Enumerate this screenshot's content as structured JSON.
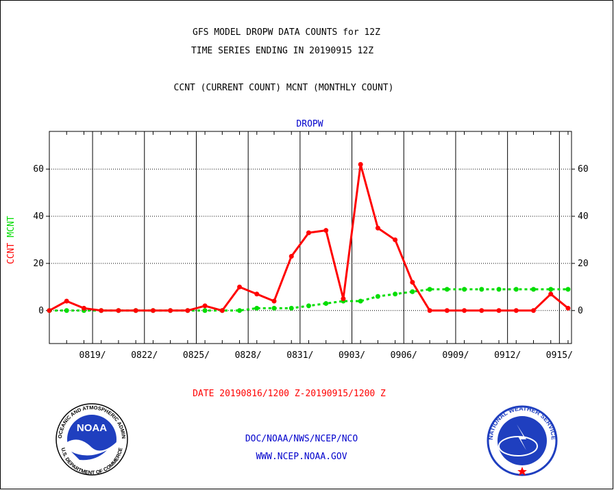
{
  "header": {
    "title_line1": "GFS MODEL DROPW DATA COUNTS for 12Z",
    "title_line2": "TIME SERIES ENDING IN 20190915 12Z",
    "subtitle": "CCNT (CURRENT COUNT) MCNT (MONTHLY COUNT)"
  },
  "footer": {
    "date_range": "DATE 20190816/1200 Z-20190915/1200 Z",
    "org": "DOC/NOAA/NWS/NCEP/NCO",
    "url": "WWW.NCEP.NOAA.GOV",
    "noaa_logo_text": "NOAA",
    "noaa_ring_top": "NATIONAL OCEANIC AND ATMOSPHERIC ADMINISTRATION",
    "noaa_ring_bottom": "U.S. DEPARTMENT OF COMMERCE",
    "nws_ring_text": "NATIONAL WEATHER SERVICE"
  },
  "colors": {
    "ccnt": "#ff0000",
    "mcnt": "#00dd00",
    "panel_title": "#0000cc",
    "date_range": "#ff0000",
    "footer_text": "#0000cc"
  },
  "chart_data": {
    "type": "line",
    "title": "DROPW",
    "ylabel_ccnt": "CCNT",
    "ylabel_mcnt": "MCNT",
    "ylim": [
      -14,
      76
    ],
    "yticks": [
      0,
      20,
      40,
      60
    ],
    "xlim": [
      0,
      30.2
    ],
    "xticks": [
      {
        "x": 2.5,
        "label": "0819/"
      },
      {
        "x": 5.5,
        "label": "0822/"
      },
      {
        "x": 8.5,
        "label": "0825/"
      },
      {
        "x": 11.5,
        "label": "0828/"
      },
      {
        "x": 14.5,
        "label": "0831/"
      },
      {
        "x": 17.5,
        "label": "0903/"
      },
      {
        "x": 20.5,
        "label": "0906/"
      },
      {
        "x": 23.5,
        "label": "0909/"
      },
      {
        "x": 26.5,
        "label": "0912/"
      },
      {
        "x": 29.5,
        "label": "0915/"
      }
    ],
    "grid": true,
    "series": [
      {
        "name": "CCNT",
        "style": "solid",
        "values": [
          0,
          4,
          1,
          0,
          0,
          0,
          0,
          0,
          0,
          2,
          0,
          10,
          7,
          4,
          23,
          33,
          34,
          5,
          62,
          35,
          30,
          12,
          0,
          0,
          0,
          0,
          0,
          0,
          0,
          7,
          1
        ]
      },
      {
        "name": "MCNT",
        "style": "dashed",
        "values": [
          0,
          0,
          0,
          0,
          0,
          0,
          0,
          0,
          0,
          0,
          0,
          0,
          1,
          1,
          1,
          2,
          3,
          4,
          4,
          6,
          7,
          8,
          9,
          9,
          9,
          9,
          9,
          9,
          9,
          9,
          9
        ]
      }
    ]
  }
}
